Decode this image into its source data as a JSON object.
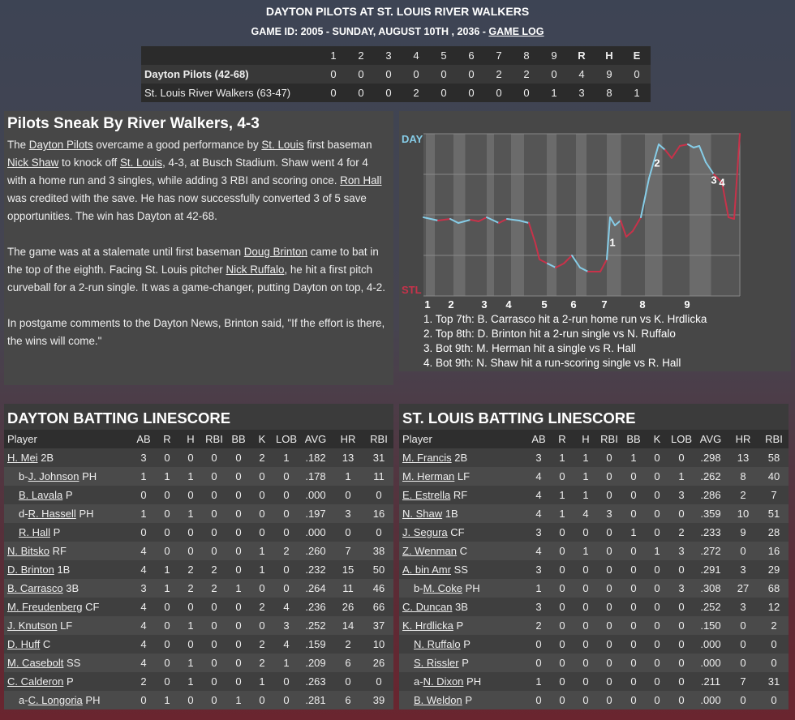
{
  "header": {
    "title": "DAYTON PILOTS AT ST. LOUIS RIVER WALKERS",
    "subtitle": "GAME ID: 2005 - SUNDAY, AUGUST 10TH , 2036 - ",
    "link": "GAME LOG"
  },
  "linescore": {
    "columns": [
      "1",
      "2",
      "3",
      "4",
      "5",
      "6",
      "7",
      "8",
      "9",
      "R",
      "H",
      "E"
    ],
    "rows": [
      {
        "team": "Dayton Pilots (42-68)",
        "cells": [
          0,
          0,
          0,
          0,
          0,
          0,
          2,
          2,
          0,
          4,
          9,
          0
        ]
      },
      {
        "team": "St. Louis River Walkers (63-47)",
        "cells": [
          0,
          0,
          0,
          2,
          0,
          0,
          0,
          0,
          1,
          3,
          8,
          1
        ]
      }
    ]
  },
  "article": {
    "title": "Pilots Sneak By River Walkers, 4-3",
    "paragraphs": [
      [
        "The ",
        {
          "link": "Dayton Pilots"
        },
        " overcame a good performance by ",
        {
          "link": "St. Louis"
        },
        " first baseman ",
        {
          "link": "Nick Shaw"
        },
        " to knock off ",
        {
          "link": "St. Louis"
        },
        ", 4-3, at Busch Stadium. Shaw went 4 for 4 with a home run and 3 singles, while adding 3 RBI and scoring once. ",
        {
          "link": "Ron Hall"
        },
        " was credited with the save. He has now successfully converted 3 of 5 save opportunities. The win has Dayton at 42-68."
      ],
      [
        "The game was at a stalemate until first baseman ",
        {
          "link": "Doug Brinton"
        },
        " came to bat in the top of the eighth. Facing St. Louis pitcher ",
        {
          "link": "Nick Ruffalo"
        },
        ", he hit a first pitch curveball for a 2-run single. It was a game-changer, putting Dayton on top, 4-2."
      ],
      [
        "In postgame comments to the Dayton News, Brinton said, \"If the effort is there, the wins will come.\""
      ]
    ]
  },
  "win_chart": {
    "type": "line",
    "top_label": "DAY",
    "bottom_label": "STL",
    "xlim": [
      0,
      390
    ],
    "ylim": [
      0,
      100
    ],
    "xticks": [
      {
        "value": 5,
        "label": "1"
      },
      {
        "value": 34,
        "label": "2"
      },
      {
        "value": 75,
        "label": "3"
      },
      {
        "value": 105,
        "label": "4"
      },
      {
        "value": 149,
        "label": "5"
      },
      {
        "value": 185,
        "label": "6"
      },
      {
        "value": 223,
        "label": "7"
      },
      {
        "value": 270,
        "label": "8"
      },
      {
        "value": 325,
        "label": "9"
      }
    ],
    "x": [
      0,
      18,
      33,
      43,
      58,
      68,
      78,
      93,
      103,
      118,
      130,
      138,
      143,
      153,
      163,
      173,
      183,
      193,
      203,
      218,
      226,
      230,
      236,
      243,
      250,
      258,
      268,
      278,
      290,
      298,
      306,
      316,
      326,
      333,
      340,
      348,
      358,
      368,
      376,
      383,
      390
    ],
    "values": [
      48.5,
      46.5,
      47.5,
      45,
      47,
      46,
      48.5,
      45,
      47.5,
      46.5,
      45,
      32.5,
      22.5,
      20,
      17.5,
      20,
      25,
      17.5,
      15,
      15,
      22.5,
      48.5,
      43.5,
      46.5,
      36.5,
      40,
      48.5,
      72.5,
      93.5,
      90,
      85,
      92.5,
      93.5,
      91.5,
      92.5,
      82.5,
      75,
      70,
      48.5,
      47.5,
      100
    ],
    "colors": {
      "top": "#86cde8",
      "bottom": "#c8324a"
    },
    "markers": [
      {
        "label": "1",
        "x": 233,
        "y": 32.5
      },
      {
        "label": "2",
        "x": 288,
        "y": 81.5
      },
      {
        "label": "3",
        "x": 358,
        "y": 71
      },
      {
        "label": "4",
        "x": 368,
        "y": 69.5
      }
    ],
    "notes": [
      "1. Top 7th: B. Carrasco hit a 2-run home run vs K. Hrdlicka",
      "2. Top 8th: D. Brinton hit a 2-run single vs N. Ruffalo",
      "3. Bot 9th: M. Herman hit a single vs R. Hall",
      "4. Bot 9th: N. Shaw hit a run-scoring single vs R. Hall"
    ]
  },
  "batting": [
    {
      "title": "DAYTON BATTING LINESCORE",
      "columns": [
        "Player",
        "AB",
        "R",
        "H",
        "RBI",
        "BB",
        "K",
        "LOB",
        "AVG",
        "HR",
        "RBI"
      ],
      "rows": [
        {
          "name": "H. Mei",
          "pos": "2B",
          "stats": [
            3,
            0,
            0,
            0,
            0,
            2,
            1,
            ".182",
            13,
            31
          ]
        },
        {
          "prefix": "b-",
          "name": "J. Johnson",
          "pos": "PH",
          "sub": true,
          "stats": [
            1,
            1,
            1,
            0,
            0,
            0,
            0,
            ".178",
            1,
            11
          ]
        },
        {
          "name": "B. Lavala",
          "pos": "P",
          "sub": true,
          "stats": [
            0,
            0,
            0,
            0,
            0,
            0,
            0,
            ".000",
            0,
            0
          ]
        },
        {
          "prefix": "d-",
          "name": "R. Hassell",
          "pos": "PH",
          "sub": true,
          "stats": [
            1,
            0,
            1,
            0,
            0,
            0,
            0,
            ".197",
            3,
            16
          ]
        },
        {
          "name": "R. Hall",
          "pos": "P",
          "sub": true,
          "stats": [
            0,
            0,
            0,
            0,
            0,
            0,
            0,
            ".000",
            0,
            0
          ]
        },
        {
          "name": "N. Bitsko",
          "pos": "RF",
          "stats": [
            4,
            0,
            0,
            0,
            0,
            1,
            2,
            ".260",
            7,
            38
          ]
        },
        {
          "name": "D. Brinton",
          "pos": "1B",
          "stats": [
            4,
            1,
            2,
            2,
            0,
            1,
            0,
            ".232",
            15,
            50
          ]
        },
        {
          "name": "B. Carrasco",
          "pos": "3B",
          "stats": [
            3,
            1,
            2,
            2,
            1,
            0,
            0,
            ".264",
            11,
            46
          ]
        },
        {
          "name": "M. Freudenberg",
          "pos": "CF",
          "stats": [
            4,
            0,
            0,
            0,
            0,
            2,
            4,
            ".236",
            26,
            66
          ]
        },
        {
          "name": "J. Knutson",
          "pos": "LF",
          "stats": [
            4,
            0,
            1,
            0,
            0,
            0,
            3,
            ".252",
            14,
            37
          ]
        },
        {
          "name": "D. Huff",
          "pos": "C",
          "stats": [
            4,
            0,
            0,
            0,
            0,
            2,
            4,
            ".159",
            2,
            10
          ]
        },
        {
          "name": "M. Casebolt",
          "pos": "SS",
          "stats": [
            4,
            0,
            1,
            0,
            0,
            2,
            1,
            ".209",
            6,
            26
          ]
        },
        {
          "name": "C. Calderon",
          "pos": "P",
          "stats": [
            2,
            0,
            1,
            0,
            0,
            1,
            0,
            ".263",
            0,
            0
          ]
        },
        {
          "prefix": "a-",
          "name": "C. Longoria",
          "pos": "PH",
          "sub": true,
          "stats": [
            0,
            1,
            0,
            0,
            1,
            0,
            0,
            ".281",
            6,
            39
          ]
        }
      ]
    },
    {
      "title": "ST. LOUIS BATTING LINESCORE",
      "columns": [
        "Player",
        "AB",
        "R",
        "H",
        "RBI",
        "BB",
        "K",
        "LOB",
        "AVG",
        "HR",
        "RBI"
      ],
      "rows": [
        {
          "name": "M. Francis",
          "pos": "2B",
          "stats": [
            3,
            1,
            1,
            0,
            1,
            0,
            0,
            ".298",
            13,
            58
          ]
        },
        {
          "name": "M. Herman",
          "pos": "LF",
          "stats": [
            4,
            0,
            1,
            0,
            0,
            0,
            1,
            ".262",
            8,
            40
          ]
        },
        {
          "name": "E. Estrella",
          "pos": "RF",
          "stats": [
            4,
            1,
            1,
            0,
            0,
            0,
            3,
            ".286",
            2,
            7
          ]
        },
        {
          "name": "N. Shaw",
          "pos": "1B",
          "stats": [
            4,
            1,
            4,
            3,
            0,
            0,
            0,
            ".359",
            10,
            51
          ]
        },
        {
          "name": "J. Segura",
          "pos": "CF",
          "stats": [
            3,
            0,
            0,
            0,
            1,
            0,
            2,
            ".233",
            9,
            28
          ]
        },
        {
          "name": "Z. Wenman",
          "pos": "C",
          "stats": [
            4,
            0,
            1,
            0,
            0,
            1,
            3,
            ".272",
            0,
            16
          ]
        },
        {
          "name": "A. bin Amr",
          "pos": "SS",
          "stats": [
            3,
            0,
            0,
            0,
            0,
            0,
            0,
            ".291",
            3,
            29
          ]
        },
        {
          "prefix": "b-",
          "name": "M. Coke",
          "pos": "PH",
          "sub": true,
          "stats": [
            1,
            0,
            0,
            0,
            0,
            0,
            3,
            ".308",
            27,
            68
          ]
        },
        {
          "name": "C. Duncan",
          "pos": "3B",
          "stats": [
            3,
            0,
            0,
            0,
            0,
            0,
            0,
            ".252",
            3,
            12
          ]
        },
        {
          "name": "K. Hrdlicka",
          "pos": "P",
          "stats": [
            2,
            0,
            0,
            0,
            0,
            0,
            0,
            ".150",
            0,
            2
          ]
        },
        {
          "name": "N. Ruffalo",
          "pos": "P",
          "sub": true,
          "stats": [
            0,
            0,
            0,
            0,
            0,
            0,
            0,
            ".000",
            0,
            0
          ]
        },
        {
          "name": "S. Rissler",
          "pos": "P",
          "sub": true,
          "stats": [
            0,
            0,
            0,
            0,
            0,
            0,
            0,
            ".000",
            0,
            0
          ]
        },
        {
          "prefix": "a-",
          "name": "N. Dixon",
          "pos": "PH",
          "sub": true,
          "stats": [
            1,
            0,
            0,
            0,
            0,
            0,
            0,
            ".211",
            7,
            31
          ]
        },
        {
          "name": "B. Weldon",
          "pos": "P",
          "sub": true,
          "stats": [
            0,
            0,
            0,
            0,
            0,
            0,
            0,
            ".000",
            0,
            0
          ]
        }
      ]
    }
  ]
}
